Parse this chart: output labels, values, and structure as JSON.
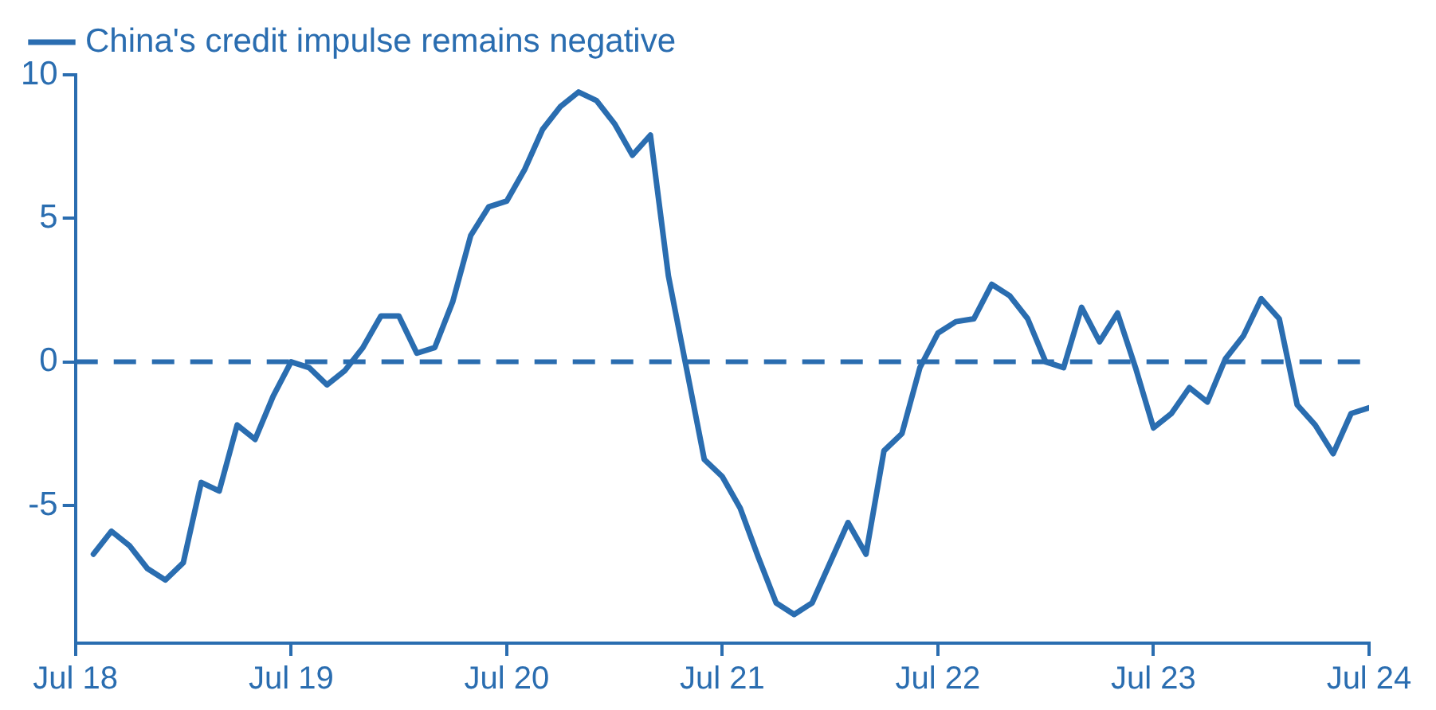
{
  "chart_data": {
    "type": "line",
    "x": [
      "2018-08",
      "2018-09",
      "2018-10",
      "2018-11",
      "2018-12",
      "2019-01",
      "2019-02",
      "2019-03",
      "2019-04",
      "2019-05",
      "2019-06",
      "2019-07",
      "2019-08",
      "2019-09",
      "2019-10",
      "2019-11",
      "2019-12",
      "2020-01",
      "2020-02",
      "2020-03",
      "2020-04",
      "2020-05",
      "2020-06",
      "2020-07",
      "2020-08",
      "2020-09",
      "2020-10",
      "2020-11",
      "2020-12",
      "2021-01",
      "2021-02",
      "2021-03",
      "2021-04",
      "2021-05",
      "2021-06",
      "2021-07",
      "2021-08",
      "2021-09",
      "2021-10",
      "2021-11",
      "2021-12",
      "2022-01",
      "2022-02",
      "2022-03",
      "2022-04",
      "2022-05",
      "2022-06",
      "2022-07",
      "2022-08",
      "2022-09",
      "2022-10",
      "2022-11",
      "2022-12",
      "2023-01",
      "2023-02",
      "2023-03",
      "2023-04",
      "2023-05",
      "2023-06",
      "2023-07",
      "2023-08",
      "2023-09",
      "2023-10",
      "2023-11",
      "2023-12",
      "2024-01",
      "2024-02",
      "2024-03",
      "2024-04",
      "2024-05",
      "2024-06",
      "2024-07"
    ],
    "series": [
      {
        "name": "China's credit impulse remains negative",
        "color": "#2a6db0",
        "values": [
          -6.7,
          -5.9,
          -6.4,
          -7.2,
          -7.6,
          -7.0,
          -4.2,
          -4.5,
          -2.2,
          -2.7,
          -1.2,
          0.0,
          -0.2,
          -0.8,
          -0.3,
          0.5,
          1.6,
          1.6,
          0.3,
          0.5,
          2.1,
          4.4,
          5.4,
          5.6,
          6.7,
          8.1,
          8.9,
          9.4,
          9.1,
          8.3,
          7.2,
          7.9,
          3.0,
          -0.2,
          -3.4,
          -4.0,
          -5.1,
          -6.8,
          -8.4,
          -8.8,
          -8.4,
          -7.0,
          -5.6,
          -6.7,
          -3.1,
          -2.5,
          -0.2,
          1.0,
          1.4,
          1.5,
          2.7,
          2.3,
          1.5,
          0.0,
          -0.2,
          1.9,
          0.7,
          1.7,
          -0.2,
          -2.3,
          -1.8,
          -0.9,
          -1.4,
          0.1,
          0.9,
          2.2,
          1.5,
          -1.5,
          -2.2,
          -3.2,
          -1.8,
          -1.6
        ]
      }
    ],
    "xlim": [
      "2018-07",
      "2024-07"
    ],
    "xticks": [
      {
        "value": "2018-07",
        "label": "Jul 18"
      },
      {
        "value": "2019-07",
        "label": "Jul 19"
      },
      {
        "value": "2020-07",
        "label": "Jul 20"
      },
      {
        "value": "2021-07",
        "label": "Jul 21"
      },
      {
        "value": "2022-07",
        "label": "Jul 22"
      },
      {
        "value": "2023-07",
        "label": "Jul 23"
      },
      {
        "value": "2024-07",
        "label": "Jul 24"
      }
    ],
    "ylim": [
      -9.8,
      10
    ],
    "yticks": [
      -5,
      0,
      5,
      10
    ],
    "ref_lines": [
      {
        "axis": "y",
        "value": 0,
        "color": "#2a6db0",
        "line_style": "dashed"
      }
    ],
    "grid": false,
    "legend": "top left",
    "marker": "none",
    "line_style": "solid"
  }
}
